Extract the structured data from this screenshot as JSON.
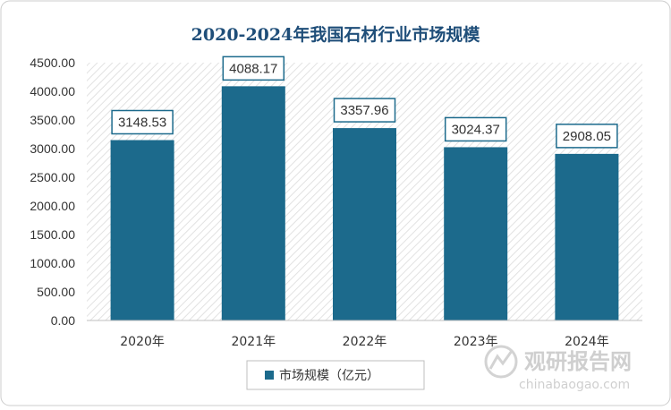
{
  "chart_data": {
    "type": "bar",
    "title": "2020-2024年我国石材行业市场规模",
    "categories": [
      "2020年",
      "2021年",
      "2022年",
      "2023年",
      "2024年"
    ],
    "series": [
      {
        "name": "市场规模（亿元）",
        "values": [
          3148.53,
          4088.17,
          3357.96,
          3024.37,
          2908.05
        ],
        "color": "#1c6a8c"
      }
    ],
    "data_labels": [
      "3148.53",
      "4088.17",
      "3357.96",
      "3024.37",
      "2908.05"
    ],
    "y_ticks": [
      "0.00",
      "500.00",
      "1000.00",
      "1500.00",
      "2000.00",
      "2500.00",
      "3000.00",
      "3500.00",
      "4000.00",
      "4500.00"
    ],
    "ylim": [
      0,
      4500
    ],
    "xlabel": "",
    "ylabel": "",
    "grid": false,
    "legend_position": "bottom",
    "colors": {
      "bar": "#1c6a8c",
      "title": "#1f4e79",
      "label_border": "#1c6a8c",
      "frame": "#cccccc"
    }
  },
  "watermark": {
    "brand": "观研报告网",
    "url": "chinabaogao.com"
  }
}
